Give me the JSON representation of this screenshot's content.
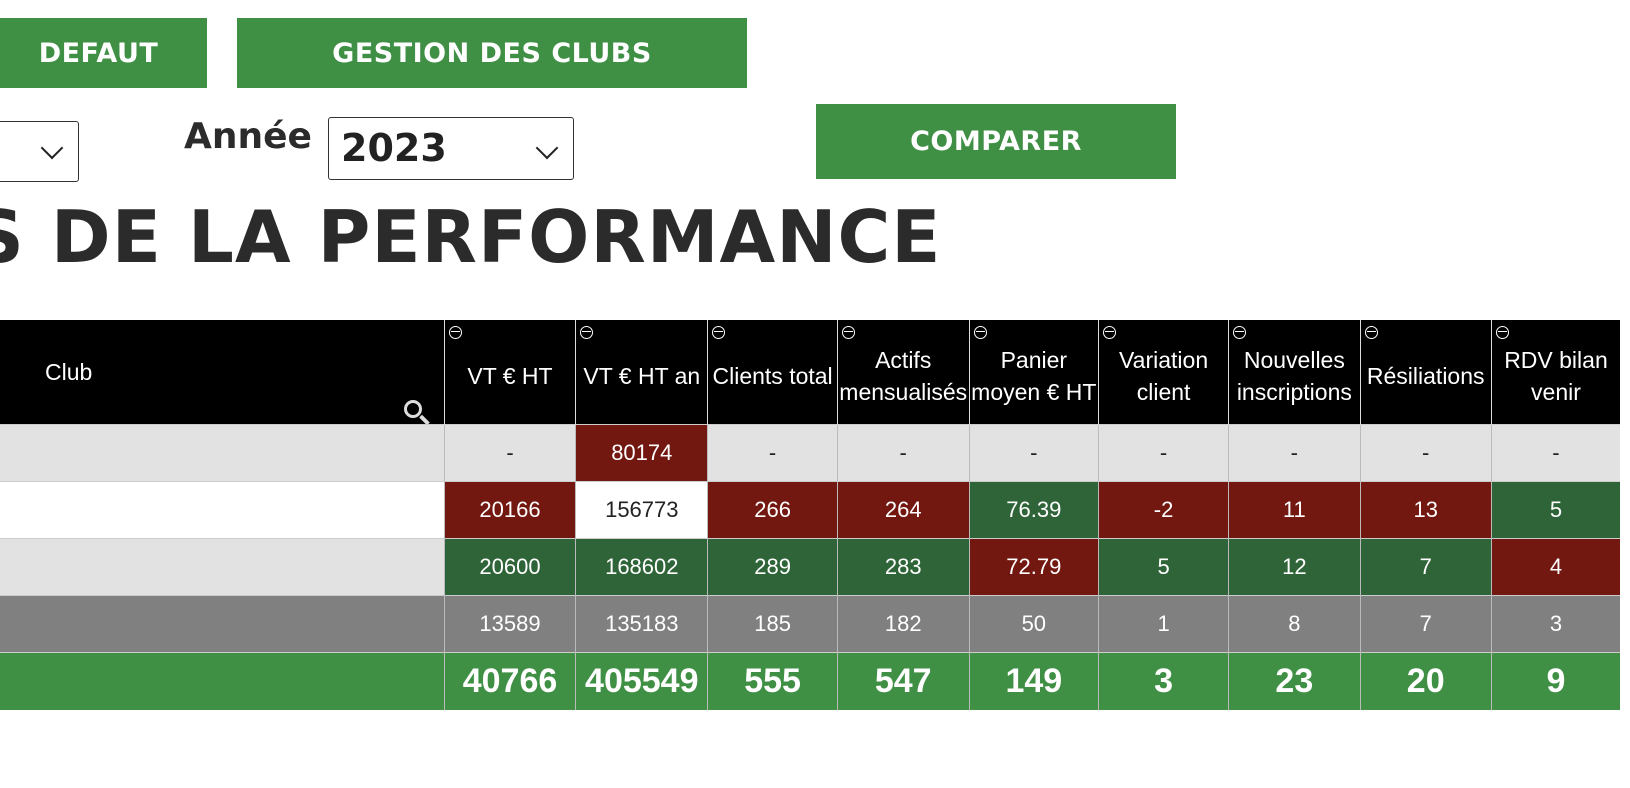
{
  "buttons": {
    "defaut": "DEFAUT",
    "gestion": "GESTION DES CLUBS",
    "comparer": "COMPARER"
  },
  "filters": {
    "annee_label": "Année",
    "annee_value": "2023"
  },
  "title": "S DE LA PERFORMANCE",
  "table": {
    "club_header": "Club",
    "headers": [
      "VT € HT",
      "VT € HT an",
      "Clients total",
      "Actifs mensualisés",
      "Panier moyen € HT",
      "Variation client",
      "Nouvelles inscriptions",
      "Résiliations",
      "RDV bilan venir"
    ],
    "rows": [
      {
        "values": [
          "-",
          "80174",
          "-",
          "-",
          "-",
          "-",
          "-",
          "-",
          "-"
        ],
        "status": [
          "",
          "red",
          "",
          "",
          "",
          "",
          "",
          "",
          ""
        ]
      },
      {
        "values": [
          "20166",
          "156773",
          "266",
          "264",
          "76.39",
          "-2",
          "11",
          "13",
          "5"
        ],
        "status": [
          "red",
          "white",
          "red",
          "red",
          "green",
          "red",
          "red",
          "red",
          "green"
        ]
      },
      {
        "values": [
          "20600",
          "168602",
          "289",
          "283",
          "72.79",
          "5",
          "12",
          "7",
          "4"
        ],
        "status": [
          "green",
          "green",
          "green",
          "green",
          "red",
          "green",
          "green",
          "green",
          "red"
        ]
      },
      {
        "values": [
          "13589",
          "135183",
          "185",
          "182",
          "50",
          "1",
          "8",
          "7",
          "3"
        ],
        "status": [
          "",
          "",
          "",
          "",
          "",
          "",
          "",
          "",
          ""
        ]
      }
    ],
    "totals": [
      "40766",
      "405549",
      "555",
      "547",
      "149",
      "3",
      "23",
      "20",
      "9"
    ]
  },
  "colors": {
    "accent_green": "#3f8f45",
    "cell_red": "#721810",
    "cell_green": "#2e6438"
  }
}
